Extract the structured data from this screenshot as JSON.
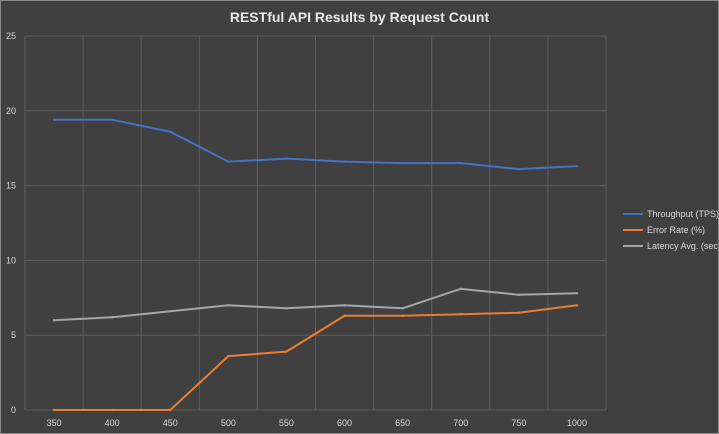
{
  "chart_data": {
    "type": "line",
    "title": "RESTful API Results by Request Count",
    "xlabel": "",
    "ylabel": "",
    "x": [
      350,
      400,
      450,
      500,
      550,
      600,
      650,
      700,
      750,
      1000
    ],
    "ylim": [
      0,
      25
    ],
    "yticks": [
      0,
      5,
      10,
      15,
      20,
      25
    ],
    "grid": true,
    "legend_position": "right",
    "series": [
      {
        "name": "Throughput (TPS)",
        "color": "#4472c4",
        "values": [
          19.4,
          19.4,
          18.6,
          16.6,
          16.8,
          16.6,
          16.5,
          16.5,
          16.1,
          16.3
        ]
      },
      {
        "name": "Error Rate (%)",
        "color": "#ed7d31",
        "values": [
          0,
          0,
          0,
          3.6,
          3.9,
          6.3,
          6.3,
          6.4,
          6.5,
          7.0
        ]
      },
      {
        "name": "Latency Avg. (sec)",
        "color": "#a5a5a5",
        "values": [
          6.0,
          6.2,
          6.6,
          7.0,
          6.8,
          7.0,
          6.8,
          8.1,
          7.7,
          7.8
        ]
      }
    ]
  }
}
